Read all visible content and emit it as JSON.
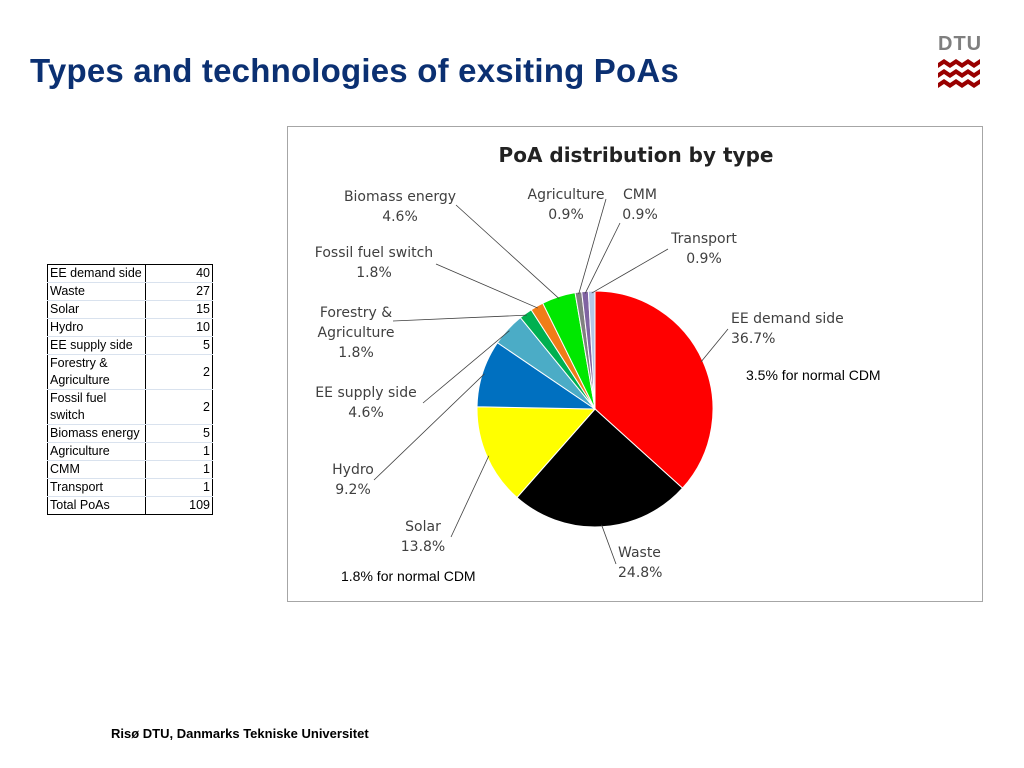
{
  "slide": {
    "title": "Types and technologies of exsiting PoAs",
    "footer": "Risø DTU, Danmarks Tekniske Universitet"
  },
  "logo": {
    "text": "DTU",
    "color": "#990000"
  },
  "table": {
    "rows": [
      {
        "label": "EE demand side",
        "value": "40"
      },
      {
        "label": "Waste",
        "value": "27"
      },
      {
        "label": "Solar",
        "value": "15"
      },
      {
        "label": "Hydro",
        "value": "10"
      },
      {
        "label": "EE supply side",
        "value": "5"
      },
      {
        "label": "Forestry & Agriculture",
        "value": "2"
      },
      {
        "label": "Fossil fuel switch",
        "value": "2"
      },
      {
        "label": "Biomass energy",
        "value": "5"
      },
      {
        "label": "Agriculture",
        "value": "1"
      },
      {
        "label": "CMM",
        "value": "1"
      },
      {
        "label": "Transport",
        "value": "1"
      }
    ],
    "total": {
      "label": "Total PoAs",
      "value": "109"
    }
  },
  "chart_data": {
    "type": "pie",
    "title": "PoA distribution by type",
    "slices": [
      {
        "name": "EE demand side",
        "value": 36.7,
        "label": "36.7%",
        "color": "#ff0000"
      },
      {
        "name": "Waste",
        "value": 24.8,
        "label": "24.8%",
        "color": "#000000"
      },
      {
        "name": "Solar",
        "value": 13.8,
        "label": "13.8%",
        "color": "#ffff00"
      },
      {
        "name": "Hydro",
        "value": 9.2,
        "label": "9.2%",
        "color": "#0070c0"
      },
      {
        "name": "EE supply side",
        "value": 4.6,
        "label": "4.6%",
        "color": "#4bacc6"
      },
      {
        "name": "Forestry & Agriculture",
        "value": 1.8,
        "label": "1.8%",
        "color": "#00b050"
      },
      {
        "name": "Fossil fuel switch",
        "value": 1.8,
        "label": "1.8%",
        "color": "#f07d18"
      },
      {
        "name": "Biomass energy",
        "value": 4.6,
        "label": "4.6%",
        "color": "#00e800"
      },
      {
        "name": "Agriculture",
        "value": 0.9,
        "label": "0.9%",
        "color": "#808080"
      },
      {
        "name": "CMM",
        "value": 0.9,
        "label": "0.9%",
        "color": "#8064a2"
      },
      {
        "name": "Transport",
        "value": 0.9,
        "label": "0.9%",
        "color": "#b4c6e7"
      }
    ],
    "slice_labels": {
      "EE demand side": [
        "EE demand side",
        "36.7%"
      ],
      "Waste": [
        "Waste",
        "24.8%"
      ],
      "Solar": [
        "Solar",
        "13.8%"
      ],
      "Hydro": [
        "Hydro",
        "9.2%"
      ],
      "EE supply side": [
        "EE supply side",
        "4.6%"
      ],
      "Forestry & Agriculture": [
        "Forestry &",
        "Agriculture",
        "1.8%"
      ],
      "Fossil fuel switch": [
        "Fossil fuel switch",
        "1.8%"
      ],
      "Biomass energy": [
        "Biomass energy",
        "4.6%"
      ],
      "Agriculture": [
        "Agriculture",
        "0.9%"
      ],
      "CMM": [
        "CMM",
        "0.9%"
      ],
      "Transport": [
        "Transport",
        "0.9%"
      ]
    },
    "legend": "none"
  },
  "notes": {
    "ee_demand": "3.5% for normal CDM",
    "solar": "1.8% for normal CDM"
  }
}
